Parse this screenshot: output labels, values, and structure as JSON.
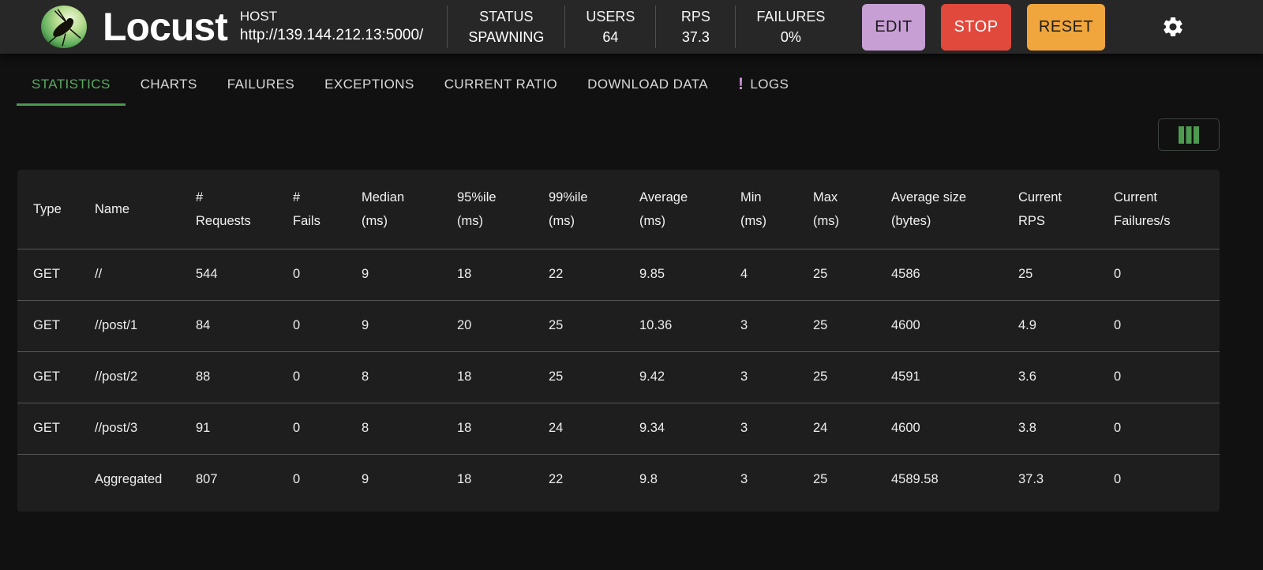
{
  "app": {
    "name": "Locust"
  },
  "header": {
    "host": {
      "label": "HOST",
      "url": "http://139.144.212.13:5000/"
    },
    "stats": [
      {
        "label": "STATUS",
        "value": "SPAWNING"
      },
      {
        "label": "USERS",
        "value": "64"
      },
      {
        "label": "RPS",
        "value": "37.3"
      },
      {
        "label": "FAILURES",
        "value": "0%"
      }
    ],
    "buttons": {
      "edit": "EDIT",
      "stop": "STOP",
      "reset": "RESET"
    }
  },
  "tabs": {
    "items": [
      {
        "label": "STATISTICS",
        "active": true
      },
      {
        "label": "CHARTS"
      },
      {
        "label": "FAILURES"
      },
      {
        "label": "EXCEPTIONS"
      },
      {
        "label": "CURRENT RATIO"
      },
      {
        "label": "DOWNLOAD DATA"
      },
      {
        "label": "LOGS",
        "badge": "!"
      }
    ]
  },
  "table": {
    "columns": [
      "Type",
      "Name",
      "#\nRequests",
      "#\nFails",
      "Median\n(ms)",
      "95%ile\n(ms)",
      "99%ile\n(ms)",
      "Average\n(ms)",
      "Min\n(ms)",
      "Max\n(ms)",
      "Average size\n(bytes)",
      "Current\nRPS",
      "Current\nFailures/s"
    ],
    "rows": [
      {
        "cells": [
          "GET",
          "//",
          "544",
          "0",
          "9",
          "18",
          "22",
          "9.85",
          "4",
          "25",
          "4586",
          "25",
          "0"
        ]
      },
      {
        "cells": [
          "GET",
          "//post/1",
          "84",
          "0",
          "9",
          "20",
          "25",
          "10.36",
          "3",
          "25",
          "4600",
          "4.9",
          "0"
        ]
      },
      {
        "cells": [
          "GET",
          "//post/2",
          "88",
          "0",
          "8",
          "18",
          "25",
          "9.42",
          "3",
          "25",
          "4591",
          "3.6",
          "0"
        ]
      },
      {
        "cells": [
          "GET",
          "//post/3",
          "91",
          "0",
          "8",
          "18",
          "24",
          "9.34",
          "3",
          "24",
          "4600",
          "3.8",
          "0"
        ]
      },
      {
        "cells": [
          "",
          "Aggregated",
          "807",
          "0",
          "9",
          "18",
          "22",
          "9.8",
          "3",
          "25",
          "4589.58",
          "37.3",
          "0"
        ],
        "aggregated": true
      }
    ]
  },
  "colors": {
    "accent_green": "#5CA862",
    "underline_green": "#4C9850",
    "edit_purple": "#c79fd4",
    "stop_red": "#e2493d",
    "reset_orange": "#f0a63c",
    "badge_purple": "#ce93d8",
    "columns_icon_green": "#4d9a50"
  }
}
